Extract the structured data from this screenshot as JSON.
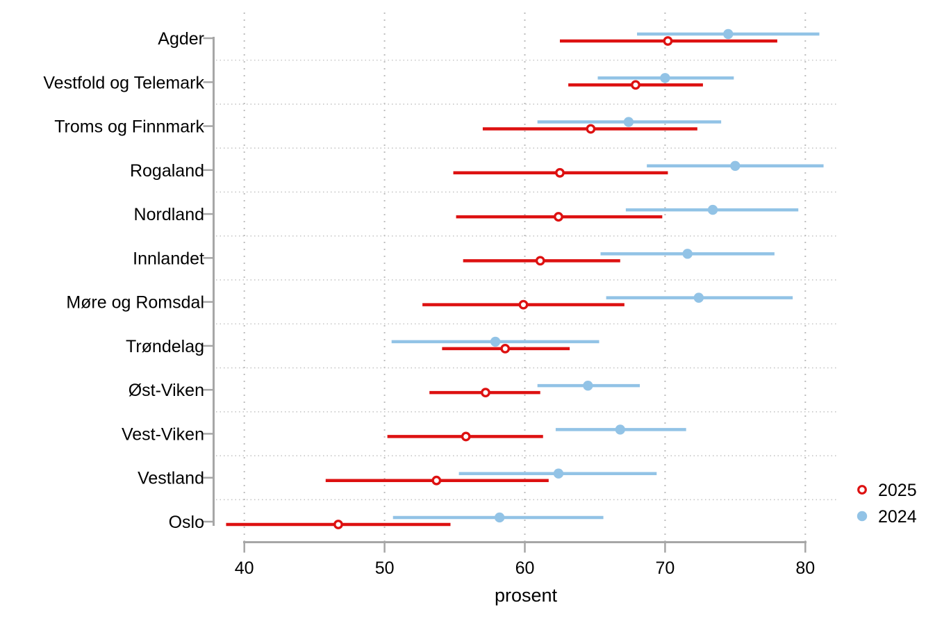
{
  "chart_data": {
    "type": "scatter",
    "subtype": "dot-interval (coefplot with confidence intervals)",
    "title": "",
    "xlabel": "prosent",
    "ylabel": "",
    "xticks": [
      40,
      50,
      60,
      70,
      80
    ],
    "xlim": [
      38,
      82.5
    ],
    "grid": "dotted",
    "legend_position": "right",
    "categories": [
      "Agder",
      "Vestfold og Telemark",
      "Troms og Finnmark",
      "Rogaland",
      "Nordland",
      "Innlandet",
      "Møre og Romsdal",
      "Trøndelag",
      "Øst-Viken",
      "Vest-Viken",
      "Vestland",
      "Oslo"
    ],
    "legend": [
      {
        "label": "2025",
        "marker": "open-circle",
        "color": "#dd1111"
      },
      {
        "label": "2024",
        "marker": "filled-circle",
        "color": "#92c3e6"
      }
    ],
    "series": [
      {
        "name": "2025",
        "marker": "open-circle",
        "color": "#dd1111",
        "points": [
          {
            "est": 70.2,
            "lo": 62.5,
            "hi": 78.0
          },
          {
            "est": 67.9,
            "lo": 63.1,
            "hi": 72.7
          },
          {
            "est": 64.7,
            "lo": 57.0,
            "hi": 72.3
          },
          {
            "est": 62.5,
            "lo": 54.9,
            "hi": 70.2
          },
          {
            "est": 62.4,
            "lo": 55.1,
            "hi": 69.8
          },
          {
            "est": 61.1,
            "lo": 55.6,
            "hi": 66.8
          },
          {
            "est": 59.9,
            "lo": 52.7,
            "hi": 67.1
          },
          {
            "est": 58.6,
            "lo": 54.1,
            "hi": 63.2
          },
          {
            "est": 57.2,
            "lo": 53.2,
            "hi": 61.1
          },
          {
            "est": 55.8,
            "lo": 50.2,
            "hi": 61.3
          },
          {
            "est": 53.7,
            "lo": 45.8,
            "hi": 61.7
          },
          {
            "est": 46.7,
            "lo": 38.7,
            "hi": 54.7
          }
        ]
      },
      {
        "name": "2024",
        "marker": "filled-circle",
        "color": "#92c3e6",
        "points": [
          {
            "est": 74.5,
            "lo": 68.0,
            "hi": 81.0
          },
          {
            "est": 70.0,
            "lo": 65.2,
            "hi": 74.9
          },
          {
            "est": 67.4,
            "lo": 60.9,
            "hi": 74.0
          },
          {
            "est": 75.0,
            "lo": 68.7,
            "hi": 81.3
          },
          {
            "est": 73.4,
            "lo": 67.2,
            "hi": 79.5
          },
          {
            "est": 71.6,
            "lo": 65.4,
            "hi": 77.8
          },
          {
            "est": 72.4,
            "lo": 65.8,
            "hi": 79.1
          },
          {
            "est": 57.9,
            "lo": 50.5,
            "hi": 65.3
          },
          {
            "est": 64.5,
            "lo": 60.9,
            "hi": 68.2
          },
          {
            "est": 66.8,
            "lo": 62.2,
            "hi": 71.5
          },
          {
            "est": 62.4,
            "lo": 55.3,
            "hi": 69.4
          },
          {
            "est": 58.2,
            "lo": 50.6,
            "hi": 65.6
          }
        ]
      }
    ]
  },
  "colors": {
    "series_2025": "#dd1111",
    "series_2024": "#92c3e6",
    "axis": "#a6a6a6",
    "gridline": "#bdbdbd",
    "separator": "#c6c6c6",
    "text": "#000000",
    "background": "#ffffff"
  }
}
